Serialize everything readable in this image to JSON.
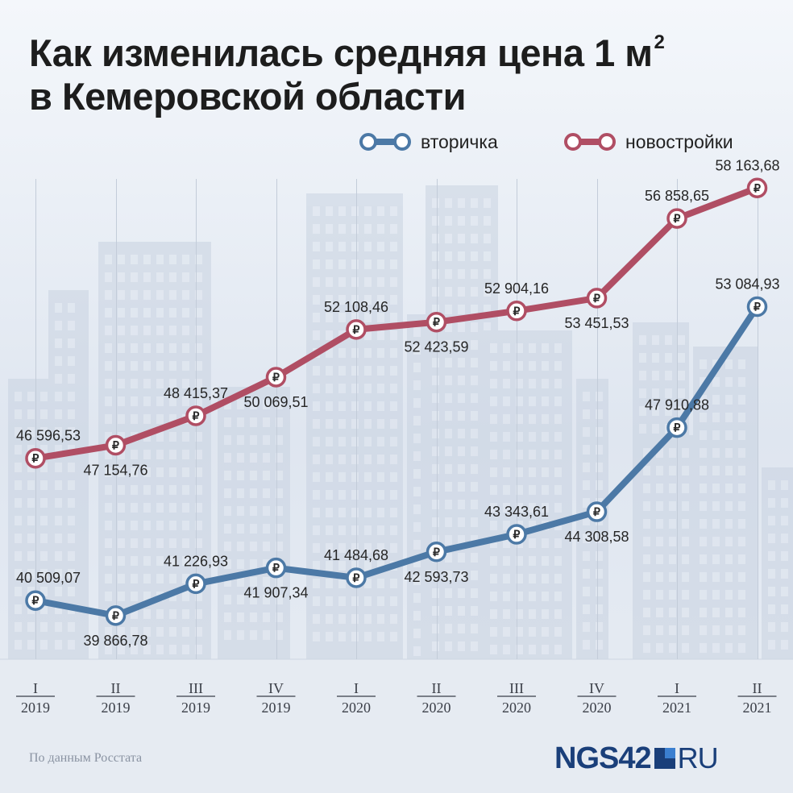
{
  "title": {
    "line1": "Как изменилась средняя цена 1 м",
    "superscript": "2",
    "line2": "в Кемеровской области"
  },
  "legend": [
    {
      "label": "вторичка",
      "color": "#4c79a6"
    },
    {
      "label": "новостройки",
      "color": "#b04e64"
    }
  ],
  "source": "По данным Росстата",
  "brand": {
    "part1": "NGS42",
    "part2": "RU"
  },
  "currency_symbol": "₽",
  "chart_data": {
    "type": "line",
    "categories": [
      {
        "quarter": "I",
        "year": "2019"
      },
      {
        "quarter": "II",
        "year": "2019"
      },
      {
        "quarter": "III",
        "year": "2019"
      },
      {
        "quarter": "IV",
        "year": "2019"
      },
      {
        "quarter": "I",
        "year": "2020"
      },
      {
        "quarter": "II",
        "year": "2020"
      },
      {
        "quarter": "III",
        "year": "2020"
      },
      {
        "quarter": "IV",
        "year": "2020"
      },
      {
        "quarter": "I",
        "year": "2021"
      },
      {
        "quarter": "II",
        "year": "2021"
      }
    ],
    "series": [
      {
        "name": "новостройки",
        "color": "#b04e64",
        "values": [
          46596.53,
          47154.76,
          48415.37,
          50069.51,
          52108.46,
          52423.59,
          52904.16,
          53451.53,
          56858.65,
          58163.68
        ],
        "labels": [
          "46 596,53",
          "47 154,76",
          "48 415,37",
          "50 069,51",
          "52 108,46",
          "52 423,59",
          "52 904,16",
          "53 451,53",
          "56 858,65",
          "58 163,68"
        ],
        "label_positions": [
          "above",
          "below",
          "above",
          "below",
          "above",
          "below",
          "above",
          "below",
          "above",
          "above"
        ]
      },
      {
        "name": "вторичка",
        "color": "#4c79a6",
        "values": [
          40509.07,
          39866.78,
          41226.93,
          41907.34,
          41484.68,
          42593.73,
          43343.61,
          44308.58,
          47910.88,
          53084.93
        ],
        "labels": [
          "40 509,07",
          "39 866,78",
          "41 226,93",
          "41 907,34",
          "41 484,68",
          "42 593,73",
          "43 343,61",
          "44 308,58",
          "47 910,88",
          "53 084,93"
        ],
        "label_positions": [
          "above",
          "below",
          "above",
          "below",
          "above",
          "below",
          "above",
          "below",
          "above",
          "above"
        ]
      }
    ],
    "grid": "vertical",
    "ylim": [
      38000,
      60000
    ]
  }
}
